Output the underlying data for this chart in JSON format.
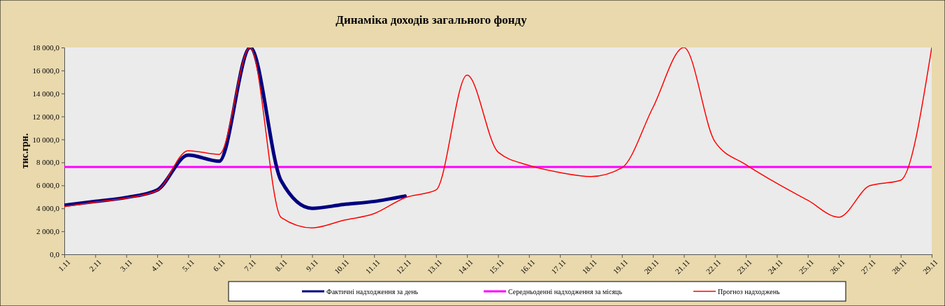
{
  "chart_data": {
    "type": "line",
    "title": "Динаміка доходів загального фонду",
    "ylabel": "тис.грн.",
    "categories": [
      "1.11",
      "2.11",
      "3.11",
      "4.11",
      "5.11",
      "6.11",
      "7.11",
      "8.11",
      "9.11",
      "10.11",
      "11.11",
      "12.11",
      "13.11",
      "14.11",
      "15.11",
      "16.11",
      "17.11",
      "18.11",
      "19.11",
      "20.11",
      "21.11",
      "22.11",
      "23.11",
      "24.11",
      "25.11",
      "26.11",
      "27.11",
      "28.11",
      "29.11"
    ],
    "series": [
      {
        "name": "Фактичні надходження за день",
        "color": "#000080",
        "values": [
          4270,
          4600,
          4950,
          5600,
          8630,
          8100,
          18000,
          6400,
          4000,
          4330,
          4600,
          5070,
          null,
          null,
          null,
          null,
          null,
          null,
          null,
          null,
          null,
          null,
          null,
          null,
          null,
          null,
          null,
          null,
          null
        ]
      },
      {
        "name": "Середньоденні надходження за місяць",
        "color": "#ff00ff",
        "values": [
          7600,
          7600,
          7600,
          7600,
          7600,
          7600,
          7600,
          7600,
          7600,
          7600,
          7600,
          7600,
          7600,
          7600,
          7600,
          7600,
          7600,
          7600,
          7600,
          7600,
          7600,
          7600,
          7600,
          7600,
          7600,
          7600,
          7600,
          7600,
          7600
        ]
      },
      {
        "name": "Прогноз надходжень",
        "color": "#ff0000",
        "values": [
          4150,
          4550,
          4900,
          5550,
          9020,
          8700,
          18000,
          3200,
          2300,
          2950,
          3540,
          4930,
          5600,
          15600,
          8900,
          7740,
          7120,
          6770,
          7530,
          12770,
          18000,
          9810,
          7800,
          6180,
          4700,
          3230,
          5970,
          6450,
          18000
        ]
      }
    ],
    "ylim": [
      0,
      18000
    ],
    "yticks": [
      {
        "value": 0,
        "label": "0,0"
      },
      {
        "value": 2000,
        "label": "2 000,0"
      },
      {
        "value": 4000,
        "label": "4 000,0"
      },
      {
        "value": 6000,
        "label": "6 000,0"
      },
      {
        "value": 8000,
        "label": "8 000,0"
      },
      {
        "value": 10000,
        "label": "10 000,0"
      },
      {
        "value": 12000,
        "label": "12 000,0"
      },
      {
        "value": 14000,
        "label": "14 000,0"
      },
      {
        "value": 16000,
        "label": "16 000,0"
      },
      {
        "value": 18000,
        "label": "18 000,0"
      }
    ],
    "legend": "bottom",
    "marker": "none",
    "line_style": "solid"
  }
}
